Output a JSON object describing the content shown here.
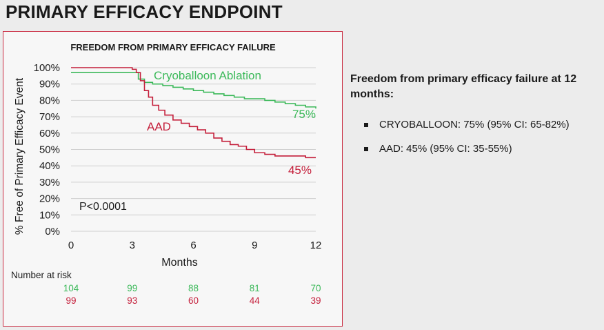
{
  "slide": {
    "title": "PRIMARY EFFICACY ENDPOINT"
  },
  "side_panel": {
    "heading": "Freedom from primary efficacy failure at 12 months:",
    "bullets": [
      "CRYOBALLOON: 75% (95% CI: 65-82%)",
      "AAD: 45% (95% CI: 35-55%)"
    ]
  },
  "colors": {
    "cryoballoon": "#3cb95a",
    "aad": "#c41e3a",
    "frame": "#c9283e",
    "grid": "#cfcfcf"
  },
  "chart_data": {
    "type": "line",
    "title": "FREEDOM FROM PRIMARY EFFICACY FAILURE",
    "xlabel": "Months",
    "ylabel": "% Free of Primary Efficacy Event",
    "xlim": [
      0,
      12
    ],
    "ylim": [
      0,
      100
    ],
    "x_ticks": [
      "0",
      "3",
      "6",
      "9",
      "12"
    ],
    "x_tick_values": [
      0,
      3,
      6,
      9,
      12
    ],
    "y_ticks": [
      "0%",
      "10%",
      "20%",
      "30%",
      "40%",
      "50%",
      "60%",
      "70%",
      "80%",
      "90%",
      "100%"
    ],
    "y_tick_values": [
      0,
      10,
      20,
      30,
      40,
      50,
      60,
      70,
      80,
      90,
      100
    ],
    "grid": true,
    "annotation": "P<0.0001",
    "series": [
      {
        "name": "Cryoballoon Ablation",
        "end_label": "75%",
        "step": true,
        "x": [
          0,
          3.0,
          3.3,
          3.6,
          4.0,
          4.5,
          5.0,
          5.5,
          6.0,
          6.5,
          7.0,
          7.5,
          8.0,
          8.5,
          9.0,
          9.5,
          10.0,
          10.5,
          11.0,
          11.5,
          12.0
        ],
        "y": [
          97,
          97,
          93,
          91,
          90,
          89,
          88,
          87,
          86,
          85,
          84,
          83,
          82,
          81,
          81,
          80,
          79,
          78,
          77,
          76,
          75
        ]
      },
      {
        "name": "AAD",
        "end_label": "45%",
        "step": true,
        "x": [
          0,
          1.5,
          3.0,
          3.2,
          3.4,
          3.6,
          3.8,
          4.0,
          4.3,
          4.6,
          5.0,
          5.4,
          5.8,
          6.2,
          6.6,
          7.0,
          7.4,
          7.8,
          8.2,
          8.6,
          9.0,
          9.5,
          10.0,
          10.5,
          11.0,
          11.5,
          12.0
        ],
        "y": [
          100,
          100,
          99,
          97,
          92,
          86,
          82,
          77,
          74,
          71,
          68,
          66,
          64,
          62,
          60,
          57,
          55,
          53,
          52,
          50,
          48,
          47,
          46,
          46,
          46,
          45,
          45
        ]
      }
    ],
    "risk_table": {
      "title": "Number at risk",
      "rows": [
        {
          "series": "Cryoballoon Ablation",
          "values": [
            "104",
            "99",
            "88",
            "81",
            "70"
          ]
        },
        {
          "series": "AAD",
          "values": [
            "99",
            "93",
            "60",
            "44",
            "39"
          ]
        }
      ]
    }
  }
}
